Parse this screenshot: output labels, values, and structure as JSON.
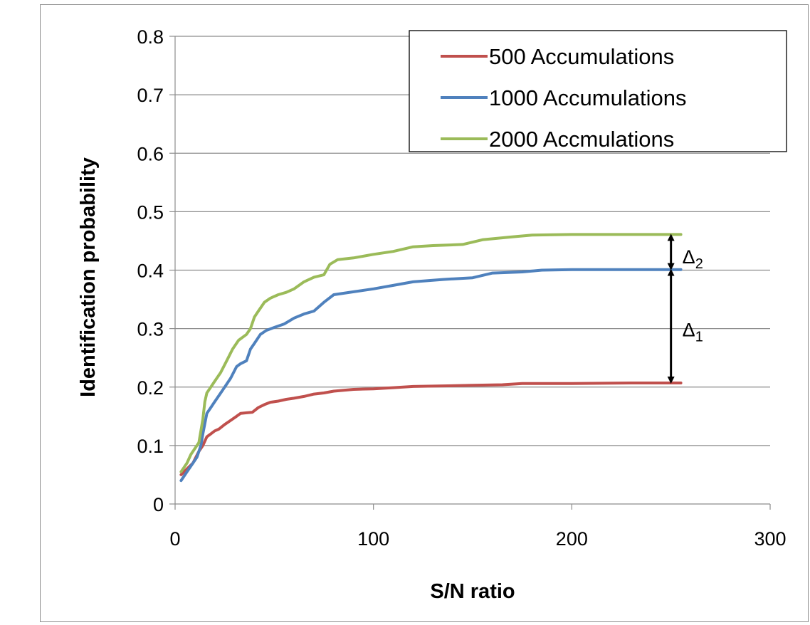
{
  "chart_data": {
    "type": "line",
    "title": "",
    "xlabel": "S/N ratio",
    "ylabel": "Identification probability",
    "xlim": [
      0,
      300
    ],
    "ylim": [
      0,
      0.8
    ],
    "xticks": [
      0,
      100,
      200,
      300
    ],
    "xtick_labels": [
      "0",
      "100",
      "200",
      "300"
    ],
    "yticks": [
      0,
      0.1,
      0.2,
      0.3,
      0.4,
      0.5,
      0.6,
      0.7,
      0.8
    ],
    "ytick_labels": [
      "0",
      "0.1",
      "0.2",
      "0.3",
      "0.4",
      "0.5",
      "0.6",
      "0.7",
      "0.8"
    ],
    "grid": "horizontal",
    "legend_position": "top-right",
    "series": [
      {
        "name": "500 Accumulations",
        "color": "#c0504d",
        "x": [
          3,
          6,
          9,
          12,
          14,
          16,
          18,
          20,
          22,
          25,
          28,
          31,
          33,
          36,
          39,
          42,
          45,
          48,
          52,
          56,
          60,
          65,
          70,
          75,
          80,
          90,
          100,
          110,
          120,
          135,
          150,
          165,
          175,
          200,
          230,
          255
        ],
        "y": [
          0.05,
          0.06,
          0.07,
          0.09,
          0.1,
          0.115,
          0.12,
          0.125,
          0.128,
          0.136,
          0.143,
          0.15,
          0.155,
          0.156,
          0.157,
          0.165,
          0.17,
          0.174,
          0.176,
          0.179,
          0.181,
          0.184,
          0.188,
          0.19,
          0.193,
          0.196,
          0.197,
          0.199,
          0.201,
          0.202,
          0.203,
          0.204,
          0.206,
          0.206,
          0.207,
          0.207
        ]
      },
      {
        "name": "1000 Accumulations",
        "color": "#4f81bd",
        "x": [
          3,
          6,
          9,
          11,
          13,
          14,
          16,
          18,
          20,
          22,
          25,
          28,
          31,
          33,
          36,
          38,
          40,
          43,
          46,
          50,
          55,
          60,
          65,
          70,
          75,
          80,
          90,
          100,
          110,
          120,
          135,
          150,
          160,
          175,
          185,
          200,
          230,
          255
        ],
        "y": [
          0.04,
          0.055,
          0.07,
          0.08,
          0.1,
          0.12,
          0.155,
          0.165,
          0.175,
          0.185,
          0.2,
          0.215,
          0.235,
          0.24,
          0.245,
          0.265,
          0.275,
          0.29,
          0.297,
          0.302,
          0.308,
          0.318,
          0.325,
          0.33,
          0.345,
          0.358,
          0.363,
          0.368,
          0.374,
          0.38,
          0.384,
          0.387,
          0.395,
          0.397,
          0.4,
          0.401,
          0.401,
          0.401
        ]
      },
      {
        "name": "2000 Accmulations",
        "color": "#9bbb59",
        "x": [
          3,
          6,
          8,
          10,
          12,
          14,
          15,
          16,
          18,
          20,
          23,
          26,
          29,
          32,
          36,
          38,
          40,
          42,
          45,
          48,
          52,
          56,
          60,
          65,
          70,
          75,
          78,
          82,
          90,
          100,
          110,
          120,
          130,
          145,
          155,
          170,
          180,
          200,
          230,
          255
        ],
        "y": [
          0.055,
          0.07,
          0.085,
          0.095,
          0.105,
          0.145,
          0.175,
          0.19,
          0.2,
          0.21,
          0.225,
          0.245,
          0.265,
          0.28,
          0.29,
          0.3,
          0.32,
          0.33,
          0.345,
          0.352,
          0.358,
          0.362,
          0.368,
          0.38,
          0.388,
          0.392,
          0.41,
          0.418,
          0.421,
          0.427,
          0.432,
          0.44,
          0.442,
          0.444,
          0.452,
          0.457,
          0.46,
          0.461,
          0.461,
          0.461
        ]
      }
    ],
    "annotations": [
      {
        "label": "Δ",
        "subscript": "2",
        "x": 250,
        "y_from": 0.461,
        "y_to": 0.401
      },
      {
        "label": "Δ",
        "subscript": "1",
        "x": 250,
        "y_from": 0.401,
        "y_to": 0.207
      }
    ]
  }
}
